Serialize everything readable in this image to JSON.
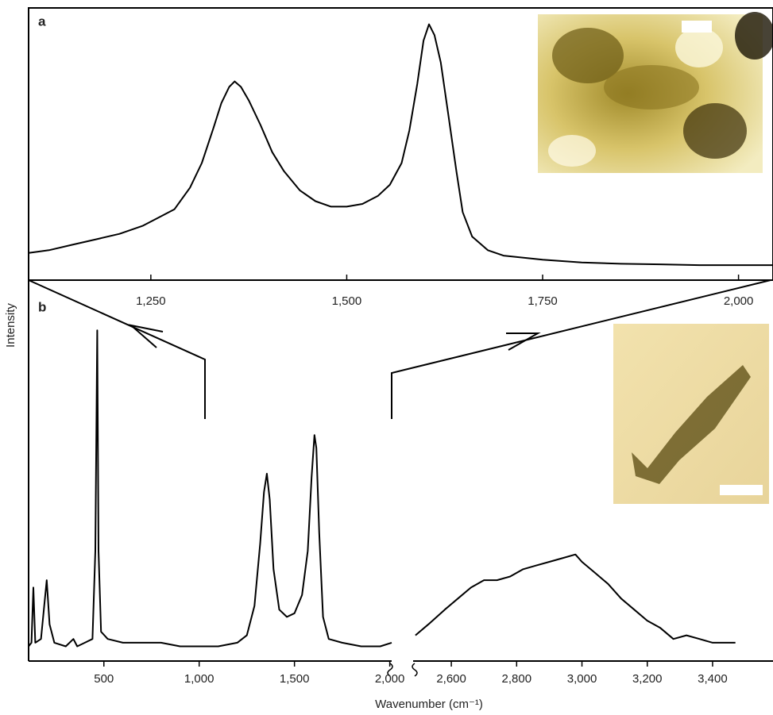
{
  "ylabel": "Intensity",
  "chart_data": [
    {
      "type": "line",
      "label": "a",
      "xlim": [
        1094,
        2044
      ],
      "xticks": [
        {
          "value": 1250,
          "label": "1,250"
        },
        {
          "value": 1500,
          "label": "1,500"
        },
        {
          "value": 1750,
          "label": "1,750"
        },
        {
          "value": 2000,
          "label": "2,000"
        }
      ],
      "ylim": [
        0,
        100
      ],
      "series": [
        {
          "color": "#000000",
          "x": [
            1094,
            1120,
            1150,
            1180,
            1210,
            1240,
            1260,
            1280,
            1300,
            1315,
            1330,
            1340,
            1350,
            1357,
            1365,
            1375,
            1390,
            1405,
            1420,
            1440,
            1460,
            1480,
            1500,
            1520,
            1540,
            1555,
            1570,
            1580,
            1590,
            1598,
            1605,
            1612,
            1620,
            1630,
            1640,
            1648,
            1660,
            1680,
            1700,
            1750,
            1800,
            1850,
            1900,
            1950,
            2000,
            2044
          ],
          "values": [
            10,
            11,
            13,
            15,
            17,
            20,
            23,
            26,
            34,
            43,
            56,
            65,
            71,
            73,
            71,
            66,
            57,
            47,
            40,
            33,
            29,
            27,
            27,
            28,
            31,
            35,
            43,
            55,
            72,
            88,
            94,
            90,
            80,
            60,
            40,
            25,
            16,
            11,
            9,
            7.5,
            6.5,
            6,
            5.8,
            5.5,
            5.5,
            5.5
          ]
        }
      ]
    },
    {
      "type": "line",
      "label": "b",
      "xlabel": "Wavenumber (cm⁻¹)",
      "ylim": [
        0,
        100
      ],
      "segments": [
        {
          "xlim": [
            105,
            2010
          ],
          "xticks": [
            500,
            {
              "value": 1000,
              "label": "1,000"
            },
            {
              "value": 1500,
              "label": "1,500"
            },
            {
              "value": 2000,
              "label": "2,000"
            }
          ],
          "series": [
            {
              "color": "#000000",
              "x": [
                105,
                120,
                130,
                140,
                170,
                200,
                215,
                240,
                300,
                340,
                360,
                400,
                440,
                455,
                465,
                472,
                485,
                520,
                600,
                700,
                800,
                900,
                1000,
                1100,
                1200,
                1250,
                1290,
                1320,
                1340,
                1355,
                1370,
                1390,
                1420,
                1460,
                1500,
                1540,
                1570,
                1590,
                1605,
                1615,
                1630,
                1650,
                1680,
                1750,
                1850,
                1950,
                2010
              ],
              "values": [
                4,
                5,
                20,
                5,
                6,
                22,
                10,
                5,
                4,
                6,
                4,
                5,
                6,
                30,
                90,
                30,
                8,
                6,
                5,
                5,
                5,
                4,
                4,
                4,
                5,
                7,
                15,
                32,
                46,
                51,
                44,
                25,
                14,
                12,
                13,
                18,
                30,
                50,
                61.5,
                58,
                35,
                12,
                6,
                5,
                4,
                4,
                5
              ]
            }
          ]
        },
        {
          "xlim": [
            2483,
            3585
          ],
          "xticks": [
            {
              "value": 2600,
              "label": "2,600"
            },
            {
              "value": 2800,
              "label": "2,800"
            },
            {
              "value": 3000,
              "label": "3,000"
            },
            {
              "value": 3200,
              "label": "3,200"
            },
            {
              "value": 3400,
              "label": "3,400"
            }
          ],
          "series": [
            {
              "color": "#000000",
              "x": [
                2490,
                2530,
                2580,
                2620,
                2660,
                2700,
                2740,
                2780,
                2820,
                2860,
                2900,
                2940,
                2980,
                3000,
                3040,
                3080,
                3120,
                3160,
                3200,
                3240,
                3280,
                3320,
                3360,
                3400,
                3440,
                3470
              ],
              "values": [
                7,
                10,
                14,
                17,
                20,
                22,
                22,
                23,
                25,
                26,
                27,
                28,
                29,
                27,
                24,
                21,
                17,
                14,
                11,
                9,
                6,
                7,
                6,
                5,
                5,
                5
              ]
            }
          ]
        }
      ]
    }
  ]
}
